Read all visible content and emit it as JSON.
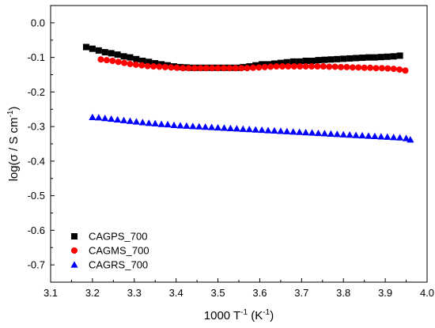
{
  "chart_data": {
    "type": "scatter",
    "title": "",
    "xlabel": {
      "base": "1000 T",
      "sup1": "-1",
      "mid": " (K",
      "sup2": "-1",
      "end": ")"
    },
    "ylabel": {
      "base": "log(σ / S cm",
      "sup": "-1",
      "end": ")"
    },
    "xlim": [
      3.1,
      4.0
    ],
    "ylim": [
      -0.75,
      0.05
    ],
    "xticks": [
      "3.1",
      "3.2",
      "3.3",
      "3.4",
      "3.5",
      "3.6",
      "3.7",
      "3.8",
      "3.9",
      "4.0"
    ],
    "yticks": [
      "0.0",
      "-0.1",
      "-0.2",
      "-0.3",
      "-0.4",
      "-0.5",
      "-0.6",
      "-0.7"
    ],
    "grid": false,
    "legend_position": "bottom-left",
    "series": [
      {
        "name": "CAGPS_700",
        "marker": "square",
        "color": "#000000",
        "x": [
          3.185,
          3.2,
          3.215,
          3.23,
          3.245,
          3.26,
          3.275,
          3.29,
          3.305,
          3.32,
          3.335,
          3.35,
          3.365,
          3.38,
          3.395,
          3.41,
          3.425,
          3.44,
          3.455,
          3.47,
          3.485,
          3.5,
          3.515,
          3.53,
          3.545,
          3.56,
          3.575,
          3.59,
          3.605,
          3.62,
          3.635,
          3.65,
          3.665,
          3.68,
          3.695,
          3.71,
          3.725,
          3.74,
          3.755,
          3.77,
          3.785,
          3.8,
          3.815,
          3.83,
          3.845,
          3.86,
          3.875,
          3.89,
          3.905,
          3.92,
          3.935
        ],
        "y": [
          -0.07,
          -0.075,
          -0.08,
          -0.085,
          -0.088,
          -0.092,
          -0.097,
          -0.1,
          -0.105,
          -0.11,
          -0.113,
          -0.117,
          -0.12,
          -0.123,
          -0.126,
          -0.128,
          -0.129,
          -0.13,
          -0.13,
          -0.13,
          -0.13,
          -0.13,
          -0.13,
          -0.13,
          -0.13,
          -0.128,
          -0.126,
          -0.123,
          -0.12,
          -0.12,
          -0.118,
          -0.116,
          -0.114,
          -0.112,
          -0.112,
          -0.11,
          -0.11,
          -0.108,
          -0.107,
          -0.106,
          -0.105,
          -0.104,
          -0.103,
          -0.102,
          -0.101,
          -0.1,
          -0.1,
          -0.099,
          -0.098,
          -0.097,
          -0.095
        ]
      },
      {
        "name": "CAGMS_700",
        "marker": "circle",
        "color": "#ff0000",
        "x": [
          3.22,
          3.234,
          3.248,
          3.262,
          3.276,
          3.29,
          3.304,
          3.318,
          3.332,
          3.346,
          3.36,
          3.374,
          3.388,
          3.402,
          3.416,
          3.43,
          3.444,
          3.458,
          3.472,
          3.486,
          3.5,
          3.514,
          3.528,
          3.542,
          3.556,
          3.57,
          3.584,
          3.598,
          3.612,
          3.626,
          3.64,
          3.654,
          3.668,
          3.682,
          3.696,
          3.71,
          3.724,
          3.738,
          3.752,
          3.766,
          3.78,
          3.794,
          3.808,
          3.822,
          3.836,
          3.85,
          3.864,
          3.878,
          3.892,
          3.906,
          3.92,
          3.934,
          3.948
        ],
        "y": [
          -0.106,
          -0.108,
          -0.11,
          -0.113,
          -0.116,
          -0.119,
          -0.121,
          -0.123,
          -0.125,
          -0.126,
          -0.127,
          -0.128,
          -0.129,
          -0.13,
          -0.131,
          -0.131,
          -0.131,
          -0.131,
          -0.131,
          -0.131,
          -0.131,
          -0.131,
          -0.131,
          -0.131,
          -0.131,
          -0.131,
          -0.13,
          -0.129,
          -0.128,
          -0.127,
          -0.126,
          -0.126,
          -0.126,
          -0.126,
          -0.126,
          -0.126,
          -0.126,
          -0.126,
          -0.126,
          -0.127,
          -0.127,
          -0.128,
          -0.128,
          -0.129,
          -0.129,
          -0.13,
          -0.13,
          -0.131,
          -0.131,
          -0.132,
          -0.133,
          -0.135,
          -0.138
        ]
      },
      {
        "name": "CAGRS_700",
        "marker": "triangle",
        "color": "#0000ff",
        "x": [
          3.2,
          3.215,
          3.23,
          3.245,
          3.26,
          3.275,
          3.29,
          3.305,
          3.32,
          3.335,
          3.35,
          3.365,
          3.38,
          3.395,
          3.41,
          3.425,
          3.44,
          3.455,
          3.47,
          3.485,
          3.5,
          3.515,
          3.53,
          3.545,
          3.56,
          3.575,
          3.59,
          3.605,
          3.62,
          3.635,
          3.65,
          3.665,
          3.68,
          3.695,
          3.71,
          3.725,
          3.74,
          3.755,
          3.77,
          3.785,
          3.8,
          3.815,
          3.83,
          3.845,
          3.86,
          3.875,
          3.89,
          3.905,
          3.92,
          3.935,
          3.95,
          3.96
        ],
        "y": [
          -0.273,
          -0.274,
          -0.276,
          -0.278,
          -0.28,
          -0.282,
          -0.284,
          -0.286,
          -0.288,
          -0.29,
          -0.291,
          -0.293,
          -0.294,
          -0.296,
          -0.297,
          -0.298,
          -0.299,
          -0.3,
          -0.301,
          -0.302,
          -0.303,
          -0.304,
          -0.305,
          -0.306,
          -0.307,
          -0.308,
          -0.309,
          -0.31,
          -0.311,
          -0.312,
          -0.313,
          -0.314,
          -0.315,
          -0.316,
          -0.317,
          -0.318,
          -0.319,
          -0.32,
          -0.321,
          -0.322,
          -0.323,
          -0.324,
          -0.325,
          -0.326,
          -0.327,
          -0.328,
          -0.329,
          -0.33,
          -0.331,
          -0.332,
          -0.334,
          -0.338
        ]
      }
    ]
  }
}
